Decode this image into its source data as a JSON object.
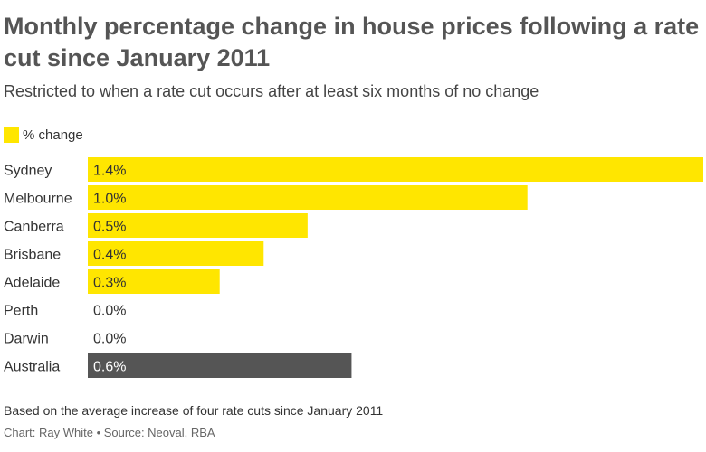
{
  "chart_data": {
    "type": "bar",
    "orientation": "horizontal",
    "title": "Monthly percentage change in house prices following a rate cut since January 2011",
    "subtitle": "Restricted to when a rate cut occurs after at least six months of no change",
    "legend": {
      "label": "% change",
      "placement": "top-left",
      "color": "#FFE600"
    },
    "categories": [
      "Sydney",
      "Melbourne",
      "Canberra",
      "Brisbane",
      "Adelaide",
      "Perth",
      "Darwin",
      "Australia"
    ],
    "series": [
      {
        "name": "% change",
        "values": [
          1.4,
          1.0,
          0.5,
          0.4,
          0.3,
          0.0,
          0.0,
          0.6
        ],
        "labels": [
          "1.4%",
          "1.0%",
          "0.5%",
          "0.4%",
          "0.3%",
          "0.0%",
          "0.0%",
          "0.6%"
        ]
      }
    ],
    "highlight": {
      "category": "Australia",
      "color": "#555555"
    },
    "bar_color": "#FFE600",
    "xlim": [
      0,
      1.4
    ],
    "grid": false,
    "note": "Based on the average increase of four rate cuts since January 2011",
    "credit": "Chart: Ray White • Source: Neoval, RBA"
  }
}
